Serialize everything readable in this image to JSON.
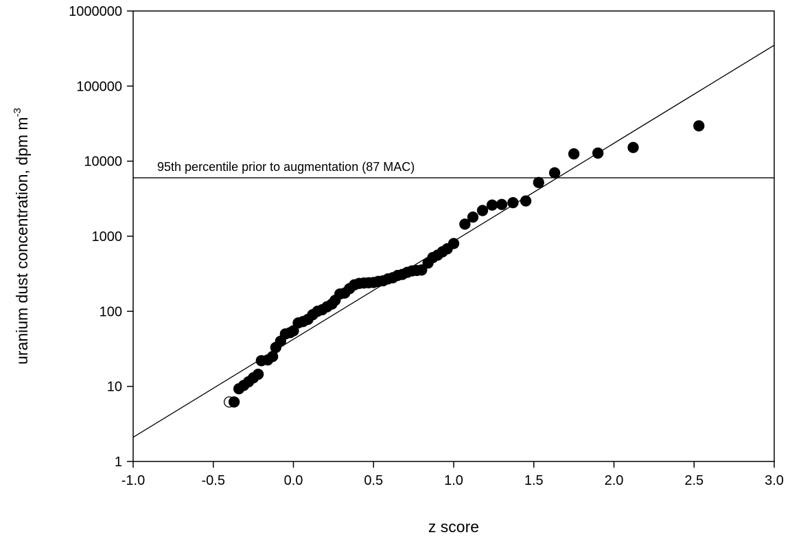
{
  "chart_data": {
    "type": "scatter",
    "xlabel": "z score",
    "ylabel": "uranium dust concentration, dpm m",
    "ylabel_superscript": "-3",
    "xlim": [
      -1.0,
      3.0
    ],
    "ylim": [
      1,
      1000000
    ],
    "yscale": "log",
    "grid": false,
    "x_ticks": [
      -1.0,
      -0.5,
      0.0,
      0.5,
      1.0,
      1.5,
      2.0,
      2.5,
      3.0
    ],
    "x_tick_labels": [
      "-1.0",
      "-0.5",
      "0.0",
      "0.5",
      "1.0",
      "1.5",
      "2.0",
      "2.5",
      "3.0"
    ],
    "y_ticks": [
      1,
      10,
      100,
      1000,
      10000,
      100000,
      1000000
    ],
    "y_tick_labels": [
      "1",
      "10",
      "100",
      "1000",
      "10000",
      "100000",
      "1000000"
    ],
    "fit_line": {
      "x": [
        -1.0,
        3.0
      ],
      "y": [
        2.1,
        350000
      ]
    },
    "reference_line": {
      "y": 6000,
      "label": "95th percentile prior to augmentation (87 MAC)"
    },
    "series": [
      {
        "marker": "open-circle",
        "points": [
          [
            -0.4,
            6.2
          ]
        ]
      },
      {
        "marker": "filled-circle",
        "points": [
          [
            -0.37,
            6.2
          ],
          [
            -0.34,
            9.3
          ],
          [
            -0.31,
            10.3
          ],
          [
            -0.28,
            11.5
          ],
          [
            -0.25,
            13.0
          ],
          [
            -0.22,
            14.5
          ],
          [
            -0.2,
            22
          ],
          [
            -0.16,
            22.5
          ],
          [
            -0.13,
            25
          ],
          [
            -0.11,
            33
          ],
          [
            -0.08,
            40
          ],
          [
            -0.05,
            50
          ],
          [
            -0.02,
            52
          ],
          [
            0.0,
            55
          ],
          [
            0.03,
            70
          ],
          [
            0.06,
            73
          ],
          [
            0.09,
            78
          ],
          [
            0.12,
            90
          ],
          [
            0.15,
            100
          ],
          [
            0.18,
            105
          ],
          [
            0.21,
            115
          ],
          [
            0.24,
            125
          ],
          [
            0.26,
            140
          ],
          [
            0.29,
            170
          ],
          [
            0.32,
            175
          ],
          [
            0.35,
            200
          ],
          [
            0.38,
            225
          ],
          [
            0.41,
            235
          ],
          [
            0.44,
            238
          ],
          [
            0.47,
            240
          ],
          [
            0.5,
            242
          ],
          [
            0.53,
            250
          ],
          [
            0.56,
            255
          ],
          [
            0.59,
            270
          ],
          [
            0.62,
            280
          ],
          [
            0.65,
            300
          ],
          [
            0.68,
            310
          ],
          [
            0.71,
            330
          ],
          [
            0.74,
            345
          ],
          [
            0.77,
            350
          ],
          [
            0.8,
            355
          ],
          [
            0.84,
            440
          ],
          [
            0.87,
            520
          ],
          [
            0.9,
            560
          ],
          [
            0.93,
            620
          ],
          [
            0.96,
            680
          ],
          [
            1.0,
            800
          ],
          [
            1.07,
            1450
          ],
          [
            1.12,
            1800
          ],
          [
            1.18,
            2200
          ],
          [
            1.24,
            2600
          ],
          [
            1.3,
            2650
          ],
          [
            1.37,
            2800
          ],
          [
            1.45,
            2950
          ],
          [
            1.53,
            5200
          ],
          [
            1.63,
            7000
          ],
          [
            1.75,
            12500
          ],
          [
            1.9,
            12800
          ],
          [
            2.12,
            15200
          ],
          [
            2.53,
            29500
          ]
        ]
      }
    ]
  }
}
